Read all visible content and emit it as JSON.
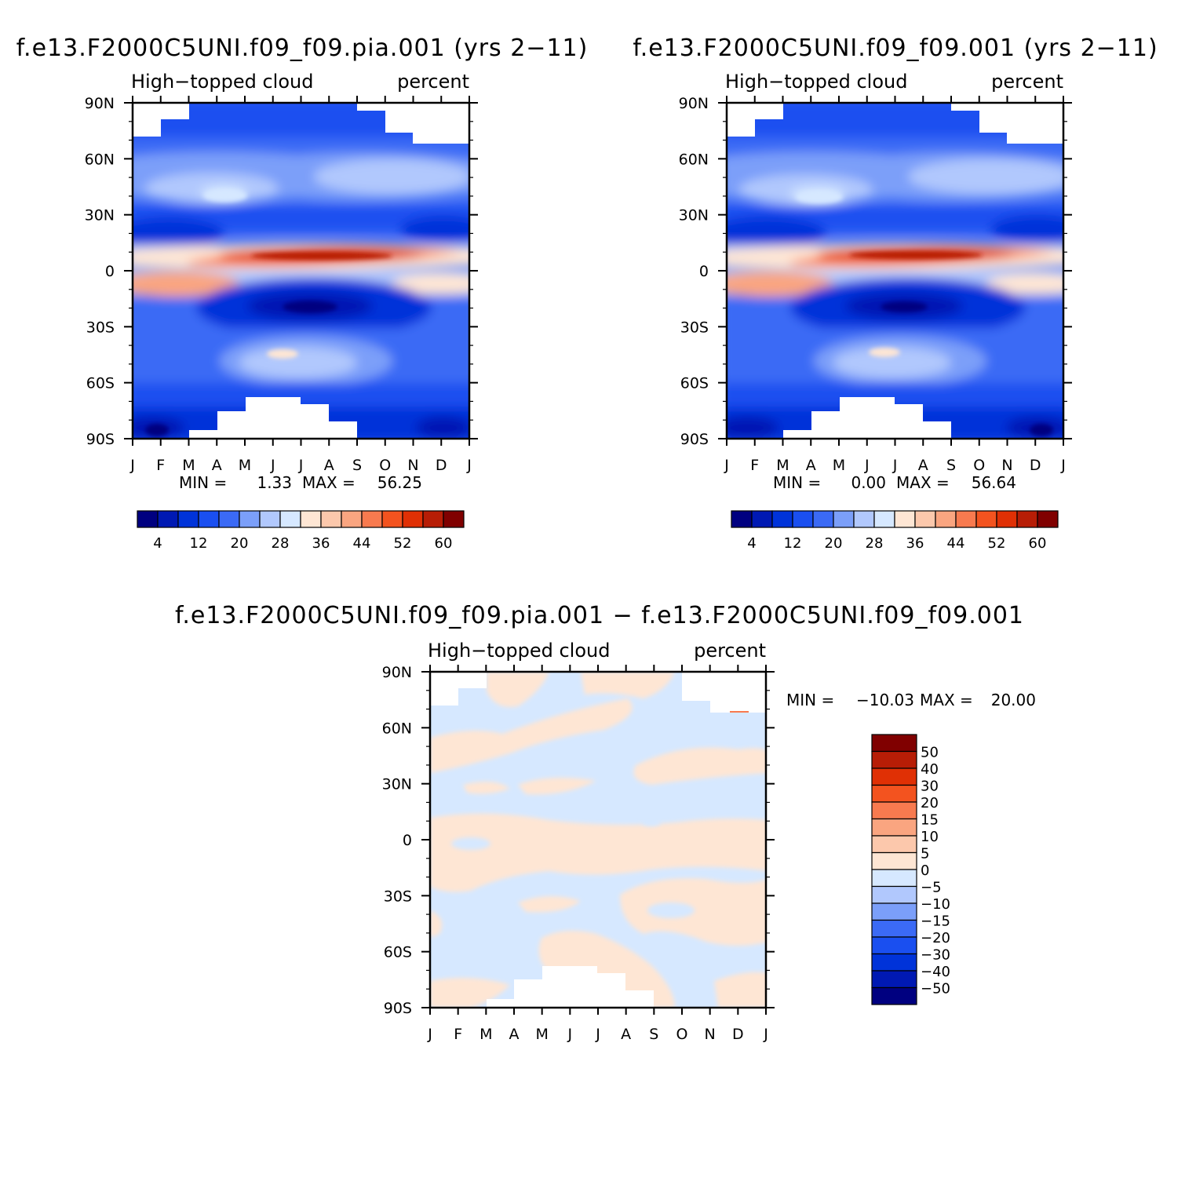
{
  "chart_data": [
    {
      "type": "heatmap",
      "title": "f.e13.F2000C5UNI.f09_f09.pia.001 (yrs 2−11)",
      "subtitle_left": "High−topped cloud",
      "subtitle_right": "percent",
      "x_ticks": [
        "J",
        "F",
        "M",
        "A",
        "M",
        "J",
        "J",
        "A",
        "S",
        "O",
        "N",
        "D",
        "J"
      ],
      "y_ticks": [
        "90N",
        "60N",
        "30N",
        "0",
        "30S",
        "60S",
        "90S"
      ],
      "stats": {
        "min_label": "MIN =",
        "min": "1.33",
        "max_label": "MAX =",
        "max": "56.25"
      },
      "colorbar": {
        "orientation": "horizontal",
        "levels": [
          4,
          8,
          12,
          16,
          20,
          24,
          28,
          32,
          36,
          40,
          44,
          48,
          52,
          56,
          60
        ],
        "labels": [
          "4",
          "12",
          "20",
          "28",
          "36",
          "44",
          "52",
          "60"
        ]
      },
      "colors": [
        "#000080",
        "#0019b3",
        "#0033d9",
        "#1a4ff0",
        "#3b6af5",
        "#7b9ff9",
        "#b1c8fd",
        "#d6e8ff",
        "#fee6d4",
        "#fcc8ac",
        "#faa580",
        "#f87a4f",
        "#f3531f",
        "#e03005",
        "#b71d06",
        "#800000"
      ]
    },
    {
      "type": "heatmap",
      "title": "f.e13.F2000C5UNI.f09_f09.001 (yrs 2−11)",
      "subtitle_left": "High−topped cloud",
      "subtitle_right": "percent",
      "x_ticks": [
        "J",
        "F",
        "M",
        "A",
        "M",
        "J",
        "J",
        "A",
        "S",
        "O",
        "N",
        "D",
        "J"
      ],
      "y_ticks": [
        "90N",
        "60N",
        "30N",
        "0",
        "30S",
        "60S",
        "90S"
      ],
      "stats": {
        "min_label": "MIN =",
        "min": "0.00",
        "max_label": "MAX =",
        "max": "56.64"
      },
      "colorbar": {
        "orientation": "horizontal",
        "levels": [
          4,
          8,
          12,
          16,
          20,
          24,
          28,
          32,
          36,
          40,
          44,
          48,
          52,
          56,
          60
        ],
        "labels": [
          "4",
          "12",
          "20",
          "28",
          "36",
          "44",
          "52",
          "60"
        ]
      }
    },
    {
      "type": "heatmap",
      "title": "f.e13.F2000C5UNI.f09_f09.pia.001 − f.e13.F2000C5UNI.f09_f09.001",
      "subtitle_left": "High−topped cloud",
      "subtitle_right": "percent",
      "x_ticks": [
        "J",
        "F",
        "M",
        "A",
        "M",
        "J",
        "J",
        "A",
        "S",
        "O",
        "N",
        "D",
        "J"
      ],
      "y_ticks": [
        "90N",
        "60N",
        "30N",
        "0",
        "30S",
        "60S",
        "90S"
      ],
      "stats": {
        "min_label": "MIN =",
        "min": "−10.03",
        "max_label": "MAX =",
        "max": "20.00"
      },
      "colorbar": {
        "orientation": "vertical",
        "levels": [
          -50,
          -40,
          -30,
          -20,
          -15,
          -10,
          -5,
          0,
          5,
          10,
          15,
          20,
          30,
          40,
          50
        ],
        "labels": [
          "−50",
          "−40",
          "−30",
          "−20",
          "−15",
          "−10",
          "−5",
          "0",
          "5",
          "10",
          "15",
          "20",
          "30",
          "40",
          "50"
        ]
      }
    }
  ]
}
